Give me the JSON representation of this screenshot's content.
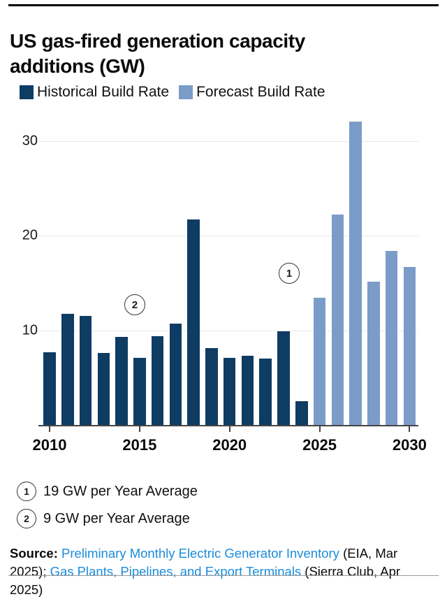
{
  "title": "US gas-fired generation capacity additions (GW)",
  "legend": [
    {
      "label": "Historical Build Rate",
      "color": "#0e3c63"
    },
    {
      "label": "Forecast Build Rate",
      "color": "#7b9cc9"
    }
  ],
  "chart_data": {
    "type": "bar",
    "title": "US gas-fired generation capacity additions (GW)",
    "ylabel": "GW",
    "ylim": [
      0,
      33
    ],
    "y_ticks": [
      10,
      20,
      30
    ],
    "x_tick_labels": [
      "2010",
      "2015",
      "2020",
      "2025",
      "2030"
    ],
    "grid": "horizontal",
    "legend_position": "top",
    "series": [
      {
        "name": "Historical Build Rate",
        "color": "#0e3c63",
        "years": [
          2010,
          2011,
          2012,
          2013,
          2014,
          2015,
          2016,
          2017,
          2018,
          2019,
          2020,
          2021,
          2022,
          2023,
          2024
        ],
        "values": [
          7.7,
          11.7,
          11.5,
          7.6,
          9.3,
          7.1,
          9.4,
          10.7,
          21.7,
          8.1,
          7.1,
          7.3,
          7.0,
          9.9,
          2.5
        ]
      },
      {
        "name": "Forecast Build Rate",
        "color": "#7b9cc9",
        "years": [
          2025,
          2026,
          2027,
          2028,
          2029,
          2030
        ],
        "values": [
          13.4,
          22.2,
          32.0,
          15.1,
          18.4,
          16.7
        ]
      }
    ],
    "annotations": [
      {
        "label": "1",
        "meaning": "19 GW per Year Average",
        "near_year": 2024,
        "at_value": 16
      },
      {
        "label": "2",
        "meaning": "9 GW per Year Average",
        "near_year": 2015,
        "at_value": 12.7
      }
    ]
  },
  "notes": [
    {
      "num": "1",
      "text": "19 GW per Year Average"
    },
    {
      "num": "2",
      "text": "9 GW per Year Average"
    }
  ],
  "source": {
    "segments": [
      {
        "text": "Source: ",
        "bold": true
      },
      {
        "text": "Preliminary Monthly Electric Generator Inventory",
        "link": true
      },
      {
        "text": " (EIA, Mar 2025); "
      },
      {
        "text": "Gas Plants, Pipelines, and Export Terminals",
        "link": true
      },
      {
        "text": " (Sierra Club, Apr 2025)"
      }
    ]
  }
}
